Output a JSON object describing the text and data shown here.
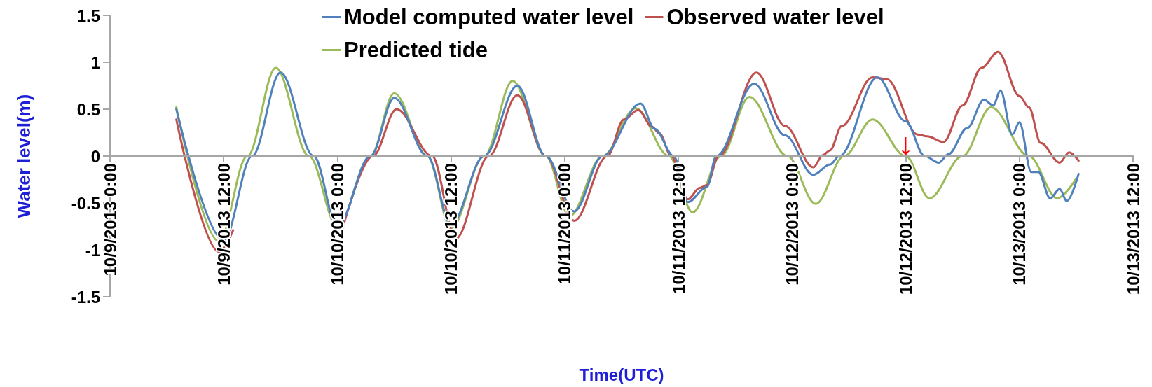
{
  "chart_data": {
    "type": "line",
    "xlabel": "Time(UTC)",
    "ylabel": "Water level(m)",
    "xlim": [
      "2013-10-09T00:00",
      "2013-10-13T12:00"
    ],
    "xticks": [
      {
        "value": "2013-10-09T00:00",
        "label": "10/9/2013 0:00"
      },
      {
        "value": "2013-10-09T12:00",
        "label": "10/9/2013 12:00"
      },
      {
        "value": "2013-10-10T00:00",
        "label": "10/10/2013 0:00"
      },
      {
        "value": "2013-10-10T12:00",
        "label": "10/10/2013 12:00"
      },
      {
        "value": "2013-10-11T00:00",
        "label": "10/11/2013 0:00"
      },
      {
        "value": "2013-10-11T12:00",
        "label": "10/11/2013 12:00"
      },
      {
        "value": "2013-10-12T00:00",
        "label": "10/12/2013 0:00"
      },
      {
        "value": "2013-10-12T12:00",
        "label": "10/12/2013 12:00"
      },
      {
        "value": "2013-10-13T00:00",
        "label": "10/13/2013 0:00"
      },
      {
        "value": "2013-10-13T12:00",
        "label": "10/13/2013 12:00"
      }
    ],
    "ylim": [
      -1.5,
      1.5
    ],
    "yticks": [
      -1.5,
      -1,
      -0.5,
      0,
      0.5,
      1,
      1.5
    ],
    "grid": false,
    "legend": "top",
    "marker": "none",
    "line_style": "solid",
    "annotations": [
      {
        "text": "↓",
        "x": "2013-10-12T12:00",
        "y": 0
      }
    ],
    "series": [
      {
        "name": "Model computed water level",
        "color": "#4f81bd",
        "x": [
          "2013-10-09T07:00",
          "2013-10-09T12:00",
          "2013-10-09T15:00",
          "2013-10-09T18:00",
          "2013-10-09T21:30",
          "2013-10-10T00:00",
          "2013-10-10T03:30",
          "2013-10-10T06:00",
          "2013-10-10T09:30",
          "2013-10-10T12:00",
          "2013-10-10T15:30",
          "2013-10-10T19:00",
          "2013-10-10T22:00",
          "2013-10-11T01:00",
          "2013-10-11T04:00",
          "2013-10-11T08:00",
          "2013-10-11T09:30",
          "2013-10-11T11:30",
          "2013-10-11T13:00",
          "2013-10-11T15:00",
          "2013-10-11T16:00",
          "2013-10-11T20:00",
          "2013-10-11T23:15",
          "2013-10-12T02:15",
          "2013-10-12T04:00",
          "2013-10-12T05:00",
          "2013-10-12T09:00",
          "2013-10-12T12:00",
          "2013-10-12T14:00",
          "2013-10-12T15:30",
          "2013-10-12T16:30",
          "2013-10-12T18:30",
          "2013-10-12T20:15",
          "2013-10-12T21:15",
          "2013-10-12T22:00",
          "2013-10-12T23:15",
          "2013-10-13T00:00",
          "2013-10-13T01:15",
          "2013-10-13T02:00",
          "2013-10-13T03:15",
          "2013-10-13T04:15",
          "2013-10-13T05:00",
          "2013-10-13T06:15"
        ],
        "values": [
          0.5,
          -0.9,
          0,
          0.89,
          0,
          -0.75,
          0,
          0.62,
          0,
          -0.73,
          0,
          0.75,
          0,
          -0.59,
          0,
          0.56,
          0.29,
          0,
          -0.49,
          -0.33,
          0,
          0.77,
          0.22,
          -0.2,
          -0.09,
          0,
          0.84,
          0.37,
          0,
          -0.07,
          0.02,
          0.3,
          0.6,
          0.54,
          0.7,
          0.23,
          0.36,
          -0.17,
          -0.17,
          -0.45,
          -0.35,
          -0.48,
          -0.19
        ]
      },
      {
        "name": "Observed water level",
        "color": "#c0504d",
        "x": [
          "2013-10-09T07:00",
          "2013-10-09T11:30",
          "2013-10-09T13:00",
          "2013-10-09T18:00",
          "2013-10-10T00:30",
          "2013-10-10T03:45",
          "2013-10-10T06:15",
          "2013-10-10T10:00",
          "2013-10-10T12:30",
          "2013-10-10T16:00",
          "2013-10-10T19:00",
          "2013-10-10T22:00",
          "2013-10-11T01:00",
          "2013-10-11T04:30",
          "2013-10-11T06:15",
          "2013-10-11T07:45",
          "2013-10-11T09:15",
          "2013-10-11T10:00",
          "2013-10-11T11:15",
          "2013-10-11T13:00",
          "2013-10-11T14:15",
          "2013-10-11T15:00",
          "2013-10-11T16:15",
          "2013-10-11T20:15",
          "2013-10-11T23:15",
          "2013-10-12T02:15",
          "2013-10-12T03:15",
          "2013-10-12T04:00",
          "2013-10-12T05:15",
          "2013-10-12T08:30",
          "2013-10-12T10:00",
          "2013-10-12T13:15",
          "2013-10-12T14:15",
          "2013-10-12T16:00",
          "2013-10-12T18:00",
          "2013-10-12T20:00",
          "2013-10-12T21:45",
          "2013-10-13T00:00",
          "2013-10-13T01:00",
          "2013-10-13T02:15",
          "2013-10-13T04:15",
          "2013-10-13T05:15",
          "2013-10-13T06:15"
        ],
        "values": [
          0.39,
          -1.02,
          -0.79,
          null,
          -0.79,
          0,
          0.5,
          0,
          -0.88,
          0,
          0.65,
          0,
          -0.69,
          0,
          0.39,
          0.49,
          0.31,
          0.24,
          0,
          -0.46,
          -0.34,
          -0.31,
          0,
          0.89,
          0.32,
          -0.12,
          0.01,
          0.06,
          0.32,
          0.84,
          0.82,
          0.23,
          0.21,
          0.15,
          0.54,
          0.94,
          1.11,
          0.64,
          0.52,
          0.14,
          -0.07,
          0.04,
          -0.05
        ]
      },
      {
        "name": "Predicted tide",
        "color": "#9bbb59",
        "x": [
          "2013-10-09T07:00",
          "2013-10-09T11:30",
          "2013-10-09T14:30",
          "2013-10-09T17:30",
          "2013-10-09T21:00",
          "2013-10-10T00:00",
          "2013-10-10T03:30",
          "2013-10-10T06:00",
          "2013-10-10T09:30",
          "2013-10-10T12:00",
          "2013-10-10T15:30",
          "2013-10-10T18:30",
          "2013-10-10T22:00",
          "2013-10-11T00:30",
          "2013-10-11T04:00",
          "2013-10-11T07:30",
          "2013-10-11T11:00",
          "2013-10-11T13:30",
          "2013-10-11T16:30",
          "2013-10-11T19:30",
          "2013-10-11T23:30",
          "2013-10-12T02:30",
          "2013-10-12T05:30",
          "2013-10-12T08:30",
          "2013-10-12T12:00",
          "2013-10-12T14:30",
          "2013-10-12T18:00",
          "2013-10-12T21:00",
          "2013-10-13T01:00",
          "2013-10-13T04:00",
          "2013-10-13T06:00"
        ],
        "values": [
          0.52,
          -0.91,
          0,
          0.94,
          0,
          -0.75,
          0,
          0.67,
          0,
          -0.77,
          0,
          0.8,
          0,
          -0.64,
          0,
          0.51,
          0,
          -0.6,
          0,
          0.63,
          0,
          -0.51,
          0,
          0.39,
          0,
          -0.45,
          0,
          0.52,
          0,
          -0.45,
          -0.24
        ]
      }
    ]
  }
}
